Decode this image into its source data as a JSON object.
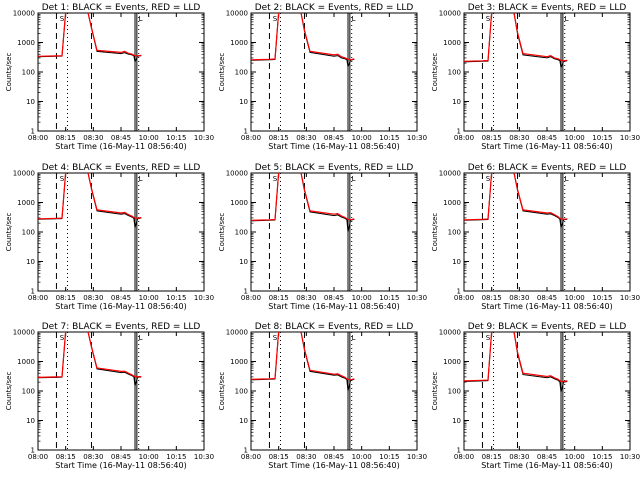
{
  "chart_data": [
    {
      "type": "line",
      "title": "Det 1: BLACK = Events, RED = LLD",
      "xlabel": "Start Time (16-May-11 08:56:40)",
      "ylabel": "Counts/sec",
      "yscale": "log",
      "xlim": [
        "08:00",
        "10:30"
      ],
      "ylim": [
        1,
        10000
      ],
      "xticks": [
        "08:00",
        "08:15",
        "08:30",
        "08:45",
        "10:00",
        "10:15",
        "10:30"
      ],
      "yticks": [
        "1",
        "10",
        "100",
        "1000",
        "10000"
      ],
      "marker_labels": [
        "S",
        "L"
      ],
      "series": [
        {
          "color": "#000000",
          "x": [
            "08:00",
            "08:10",
            "08:13",
            "08:15",
            "08:20",
            "08:27",
            "08:29",
            "08:32",
            "08:45",
            "08:55",
            "09:05",
            "09:15",
            "09:20",
            "09:23",
            "09:30",
            "09:40"
          ],
          "y": [
            330,
            340,
            345,
            11000,
            11000,
            11000,
            3000,
            500,
            420,
            450,
            400,
            380,
            350,
            220,
            340,
            360
          ]
        },
        {
          "color": "#ff0000",
          "x": [
            "08:00",
            "08:10",
            "08:13",
            "08:15",
            "08:20",
            "08:27",
            "08:29",
            "08:32",
            "08:45",
            "08:55",
            "09:05",
            "09:15",
            "09:20",
            "09:23",
            "09:30",
            "09:40"
          ],
          "y": [
            340,
            350,
            355,
            11000,
            11000,
            11000,
            3200,
            540,
            460,
            500,
            430,
            400,
            370,
            360,
            350,
            370
          ]
        }
      ]
    },
    {
      "type": "line",
      "title": "Det 2: BLACK = Events, RED = LLD",
      "xlabel": "Start Time (16-May-11 08:56:40)",
      "ylabel": "Counts/sec",
      "yscale": "log",
      "xlim": [
        "08:00",
        "10:30"
      ],
      "ylim": [
        1,
        10000
      ],
      "xticks": [
        "08:00",
        "08:15",
        "08:30",
        "08:45",
        "10:00",
        "10:15",
        "10:30"
      ],
      "yticks": [
        "1",
        "10",
        "100",
        "1000",
        "10000"
      ],
      "marker_labels": [
        "S",
        "L"
      ],
      "series": [
        {
          "color": "#000000",
          "x": [
            "08:00",
            "08:10",
            "08:13",
            "08:15",
            "08:20",
            "08:27",
            "08:29",
            "08:32",
            "08:45",
            "08:55",
            "09:05",
            "09:15",
            "09:20",
            "09:23",
            "09:30",
            "09:40"
          ],
          "y": [
            250,
            260,
            265,
            11000,
            11000,
            11000,
            2400,
            460,
            340,
            360,
            300,
            280,
            260,
            150,
            250,
            270
          ]
        },
        {
          "color": "#ff0000",
          "x": [
            "08:00",
            "08:10",
            "08:13",
            "08:15",
            "08:20",
            "08:27",
            "08:29",
            "08:32",
            "08:45",
            "08:55",
            "09:05",
            "09:15",
            "09:20",
            "09:23",
            "09:30",
            "09:40"
          ],
          "y": [
            260,
            270,
            275,
            11000,
            11000,
            11000,
            2600,
            500,
            380,
            400,
            330,
            300,
            280,
            270,
            260,
            280
          ]
        }
      ]
    },
    {
      "type": "line",
      "title": "Det 3: BLACK = Events, RED = LLD",
      "xlabel": "Start Time (16-May-11 08:56:40)",
      "ylabel": "Counts/sec",
      "yscale": "log",
      "xlim": [
        "08:00",
        "10:30"
      ],
      "ylim": [
        1,
        10000
      ],
      "xticks": [
        "08:00",
        "08:15",
        "08:30",
        "08:45",
        "10:00",
        "10:15",
        "10:30"
      ],
      "yticks": [
        "1",
        "10",
        "100",
        "1000",
        "10000"
      ],
      "marker_labels": [
        "S",
        "L"
      ],
      "series": [
        {
          "color": "#000000",
          "x": [
            "08:00",
            "08:10",
            "08:13",
            "08:15",
            "08:20",
            "08:27",
            "08:29",
            "08:32",
            "08:45",
            "08:55",
            "09:05",
            "09:15",
            "09:20",
            "09:23",
            "09:30",
            "09:40"
          ],
          "y": [
            220,
            230,
            235,
            11000,
            11000,
            11000,
            2000,
            380,
            300,
            330,
            280,
            260,
            240,
            140,
            230,
            240
          ]
        },
        {
          "color": "#ff0000",
          "x": [
            "08:00",
            "08:10",
            "08:13",
            "08:15",
            "08:20",
            "08:27",
            "08:29",
            "08:32",
            "08:45",
            "08:55",
            "09:05",
            "09:15",
            "09:20",
            "09:23",
            "09:30",
            "09:40"
          ],
          "y": [
            230,
            240,
            245,
            11000,
            11000,
            11000,
            2200,
            420,
            330,
            360,
            300,
            280,
            260,
            250,
            240,
            250
          ]
        }
      ]
    },
    {
      "type": "line",
      "title": "Det 4: BLACK = Events, RED = LLD",
      "xlabel": "Start Time (16-May-11 08:56:40)",
      "ylabel": "Counts/sec",
      "yscale": "log",
      "xlim": [
        "08:00",
        "10:30"
      ],
      "ylim": [
        1,
        10000
      ],
      "xticks": [
        "08:00",
        "08:15",
        "08:30",
        "08:45",
        "10:00",
        "10:15",
        "10:30"
      ],
      "yticks": [
        "1",
        "10",
        "100",
        "1000",
        "10000"
      ],
      "marker_labels": [
        "S",
        "L"
      ],
      "series": [
        {
          "color": "#000000",
          "x": [
            "08:00",
            "08:10",
            "08:13",
            "08:15",
            "08:20",
            "08:27",
            "08:29",
            "08:32",
            "08:45",
            "08:55",
            "09:05",
            "09:15",
            "09:20",
            "09:23",
            "09:30",
            "09:40"
          ],
          "y": [
            270,
            280,
            285,
            11000,
            11000,
            11000,
            2800,
            520,
            400,
            420,
            360,
            320,
            290,
            140,
            280,
            300
          ]
        },
        {
          "color": "#ff0000",
          "x": [
            "08:00",
            "08:10",
            "08:13",
            "08:15",
            "08:20",
            "08:27",
            "08:29",
            "08:32",
            "08:45",
            "08:55",
            "09:05",
            "09:15",
            "09:20",
            "09:23",
            "09:30",
            "09:40"
          ],
          "y": [
            280,
            290,
            295,
            11000,
            11000,
            11000,
            3000,
            560,
            440,
            460,
            390,
            340,
            310,
            300,
            290,
            310
          ]
        }
      ]
    },
    {
      "type": "line",
      "title": "Det 5: BLACK = Events, RED = LLD",
      "xlabel": "Start Time (16-May-11 08:56:40)",
      "ylabel": "Counts/sec",
      "yscale": "log",
      "xlim": [
        "08:00",
        "10:30"
      ],
      "ylim": [
        1,
        10000
      ],
      "xticks": [
        "08:00",
        "08:15",
        "08:30",
        "08:45",
        "10:00",
        "10:15",
        "10:30"
      ],
      "yticks": [
        "1",
        "10",
        "100",
        "1000",
        "10000"
      ],
      "marker_labels": [
        "S",
        "L"
      ],
      "series": [
        {
          "color": "#000000",
          "x": [
            "08:00",
            "08:10",
            "08:13",
            "08:15",
            "08:20",
            "08:27",
            "08:29",
            "08:32",
            "08:45",
            "08:55",
            "09:05",
            "09:15",
            "09:20",
            "09:23",
            "09:30",
            "09:40"
          ],
          "y": [
            240,
            250,
            255,
            11000,
            11000,
            11000,
            2500,
            480,
            360,
            380,
            320,
            290,
            260,
            100,
            250,
            270
          ]
        },
        {
          "color": "#ff0000",
          "x": [
            "08:00",
            "08:10",
            "08:13",
            "08:15",
            "08:20",
            "08:27",
            "08:29",
            "08:32",
            "08:45",
            "08:55",
            "09:05",
            "09:15",
            "09:20",
            "09:23",
            "09:30",
            "09:40"
          ],
          "y": [
            250,
            260,
            265,
            11000,
            11000,
            11000,
            2700,
            520,
            400,
            420,
            350,
            310,
            280,
            270,
            260,
            280
          ]
        }
      ]
    },
    {
      "type": "line",
      "title": "Det 6: BLACK = Events, RED = LLD",
      "xlabel": "Start Time (16-May-11 08:56:40)",
      "ylabel": "Counts/sec",
      "yscale": "log",
      "xlim": [
        "08:00",
        "10:30"
      ],
      "ylim": [
        1,
        10000
      ],
      "xticks": [
        "08:00",
        "08:15",
        "08:30",
        "08:45",
        "10:00",
        "10:15",
        "10:30"
      ],
      "yticks": [
        "1",
        "10",
        "100",
        "1000",
        "10000"
      ],
      "marker_labels": [
        "S",
        "L"
      ],
      "series": [
        {
          "color": "#000000",
          "x": [
            "08:00",
            "08:10",
            "08:13",
            "08:15",
            "08:20",
            "08:27",
            "08:29",
            "08:32",
            "08:45",
            "08:55",
            "09:05",
            "09:15",
            "09:20",
            "09:23",
            "09:30",
            "09:40"
          ],
          "y": [
            250,
            260,
            265,
            11000,
            11000,
            11000,
            2600,
            520,
            400,
            410,
            360,
            310,
            270,
            140,
            260,
            270
          ]
        },
        {
          "color": "#ff0000",
          "x": [
            "08:00",
            "08:10",
            "08:13",
            "08:15",
            "08:20",
            "08:27",
            "08:29",
            "08:32",
            "08:45",
            "08:55",
            "09:05",
            "09:15",
            "09:20",
            "09:23",
            "09:30",
            "09:40"
          ],
          "y": [
            260,
            270,
            275,
            11000,
            11000,
            11000,
            2800,
            560,
            440,
            450,
            390,
            330,
            290,
            280,
            270,
            280
          ]
        }
      ]
    },
    {
      "type": "line",
      "title": "Det 7: BLACK = Events, RED = LLD",
      "xlabel": "Start Time (16-May-11 08:56:40)",
      "ylabel": "Counts/sec",
      "yscale": "log",
      "xlim": [
        "08:00",
        "10:30"
      ],
      "ylim": [
        1,
        10000
      ],
      "xticks": [
        "08:00",
        "08:15",
        "08:30",
        "08:45",
        "10:00",
        "10:15",
        "10:30"
      ],
      "yticks": [
        "1",
        "10",
        "100",
        "1000",
        "10000"
      ],
      "marker_labels": [
        "S",
        "L"
      ],
      "series": [
        {
          "color": "#000000",
          "x": [
            "08:00",
            "08:10",
            "08:13",
            "08:15",
            "08:20",
            "08:27",
            "08:29",
            "08:32",
            "08:45",
            "08:55",
            "09:05",
            "09:15",
            "09:20",
            "09:23",
            "09:30",
            "09:40"
          ],
          "y": [
            280,
            290,
            295,
            11000,
            11000,
            11000,
            3000,
            560,
            420,
            430,
            370,
            330,
            300,
            150,
            290,
            300
          ]
        },
        {
          "color": "#ff0000",
          "x": [
            "08:00",
            "08:10",
            "08:13",
            "08:15",
            "08:20",
            "08:27",
            "08:29",
            "08:32",
            "08:45",
            "08:55",
            "09:05",
            "09:15",
            "09:20",
            "09:23",
            "09:30",
            "09:40"
          ],
          "y": [
            290,
            300,
            305,
            11000,
            11000,
            11000,
            3200,
            600,
            460,
            470,
            400,
            350,
            320,
            310,
            300,
            310
          ]
        }
      ]
    },
    {
      "type": "line",
      "title": "Det 8: BLACK = Events, RED = LLD",
      "xlabel": "Start Time (16-May-11 08:56:40)",
      "ylabel": "Counts/sec",
      "yscale": "log",
      "xlim": [
        "08:00",
        "10:30"
      ],
      "ylim": [
        1,
        10000
      ],
      "xticks": [
        "08:00",
        "08:15",
        "08:30",
        "08:45",
        "10:00",
        "10:15",
        "10:30"
      ],
      "yticks": [
        "1",
        "10",
        "100",
        "1000",
        "10000"
      ],
      "marker_labels": [
        "S",
        "L"
      ],
      "series": [
        {
          "color": "#000000",
          "x": [
            "08:00",
            "08:10",
            "08:13",
            "08:15",
            "08:20",
            "08:27",
            "08:29",
            "08:32",
            "08:45",
            "08:55",
            "09:05",
            "09:15",
            "09:20",
            "09:23",
            "09:30",
            "09:40"
          ],
          "y": [
            240,
            250,
            255,
            11000,
            11000,
            11000,
            2400,
            460,
            340,
            350,
            300,
            270,
            240,
            100,
            230,
            250
          ]
        },
        {
          "color": "#ff0000",
          "x": [
            "08:00",
            "08:10",
            "08:13",
            "08:15",
            "08:20",
            "08:27",
            "08:29",
            "08:32",
            "08:45",
            "08:55",
            "09:05",
            "09:15",
            "09:20",
            "09:23",
            "09:30",
            "09:40"
          ],
          "y": [
            250,
            260,
            265,
            11000,
            11000,
            11000,
            2600,
            500,
            370,
            380,
            330,
            290,
            260,
            250,
            240,
            260
          ]
        }
      ]
    },
    {
      "type": "line",
      "title": "Det 9: BLACK = Events, RED = LLD",
      "xlabel": "Start Time (16-May-11 08:56:40)",
      "ylabel": "Counts/sec",
      "yscale": "log",
      "xlim": [
        "08:00",
        "10:30"
      ],
      "ylim": [
        1,
        10000
      ],
      "xticks": [
        "08:00",
        "08:15",
        "08:30",
        "08:45",
        "10:00",
        "10:15",
        "10:30"
      ],
      "yticks": [
        "1",
        "10",
        "100",
        "1000",
        "10000"
      ],
      "marker_labels": [
        "S",
        "L"
      ],
      "series": [
        {
          "color": "#000000",
          "x": [
            "08:00",
            "08:10",
            "08:13",
            "08:15",
            "08:20",
            "08:27",
            "08:29",
            "08:32",
            "08:45",
            "08:55",
            "09:05",
            "09:15",
            "09:20",
            "09:23",
            "09:30",
            "09:40"
          ],
          "y": [
            210,
            220,
            225,
            11000,
            11000,
            11000,
            1900,
            360,
            280,
            300,
            260,
            230,
            200,
            90,
            200,
            210
          ]
        },
        {
          "color": "#ff0000",
          "x": [
            "08:00",
            "08:10",
            "08:13",
            "08:15",
            "08:20",
            "08:27",
            "08:29",
            "08:32",
            "08:45",
            "08:55",
            "09:05",
            "09:15",
            "09:20",
            "09:23",
            "09:30",
            "09:40"
          ],
          "y": [
            220,
            230,
            235,
            11000,
            11000,
            11000,
            2100,
            400,
            310,
            330,
            280,
            250,
            220,
            210,
            210,
            220
          ]
        }
      ]
    }
  ]
}
